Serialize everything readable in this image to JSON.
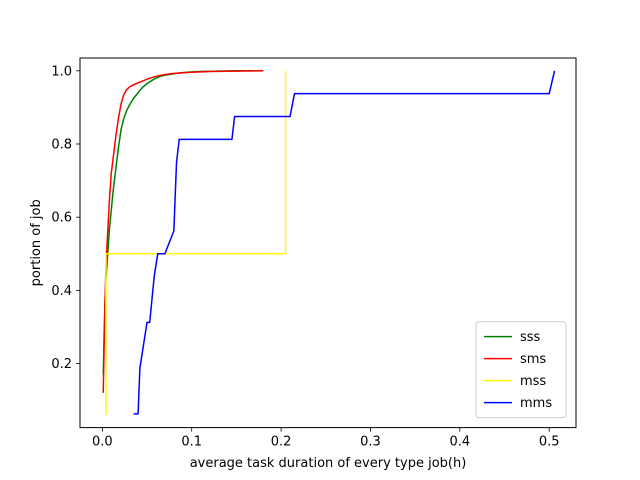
{
  "chart_data": {
    "type": "line",
    "title": "",
    "xlabel": "average task duration of every type job(h)",
    "ylabel": "portion of job",
    "xlim": [
      -0.025,
      0.53
    ],
    "ylim": [
      0.025,
      1.035
    ],
    "x_ticks": [
      0.0,
      0.1,
      0.2,
      0.3,
      0.4,
      0.5
    ],
    "x_tick_labels": [
      "0.0",
      "0.1",
      "0.2",
      "0.3",
      "0.4",
      "0.5"
    ],
    "y_ticks": [
      0.2,
      0.4,
      0.6,
      0.8,
      1.0
    ],
    "y_tick_labels": [
      "0.2",
      "0.4",
      "0.6",
      "0.8",
      "1.0"
    ],
    "grid": false,
    "legend_position": "bottom-right",
    "series": [
      {
        "name": "sss",
        "color": "#008000",
        "x": [
          0.001,
          0.002,
          0.003,
          0.004,
          0.006,
          0.008,
          0.01,
          0.012,
          0.015,
          0.018,
          0.021,
          0.024,
          0.027,
          0.03,
          0.035,
          0.04,
          0.045,
          0.05,
          0.055,
          0.06,
          0.065,
          0.07,
          0.08,
          0.09,
          0.1,
          0.11,
          0.13,
          0.15,
          0.17,
          0.18
        ],
        "y": [
          0.17,
          0.28,
          0.37,
          0.43,
          0.5,
          0.57,
          0.62,
          0.67,
          0.73,
          0.79,
          0.84,
          0.87,
          0.89,
          0.905,
          0.925,
          0.94,
          0.955,
          0.965,
          0.973,
          0.98,
          0.985,
          0.988,
          0.992,
          0.995,
          0.997,
          0.998,
          0.999,
          1.0,
          1.0,
          1.0
        ]
      },
      {
        "name": "sms",
        "color": "#ff0000",
        "x": [
          0.001,
          0.002,
          0.003,
          0.004,
          0.006,
          0.008,
          0.01,
          0.012,
          0.015,
          0.018,
          0.021,
          0.024,
          0.027,
          0.03,
          0.035,
          0.04,
          0.045,
          0.05,
          0.06,
          0.07,
          0.08,
          0.1,
          0.12,
          0.15,
          0.18
        ],
        "y": [
          0.12,
          0.25,
          0.37,
          0.46,
          0.56,
          0.65,
          0.72,
          0.76,
          0.82,
          0.87,
          0.91,
          0.935,
          0.948,
          0.955,
          0.962,
          0.967,
          0.972,
          0.977,
          0.985,
          0.99,
          0.993,
          0.996,
          0.998,
          0.999,
          1.0
        ]
      },
      {
        "name": "mss",
        "color": "#ffff00",
        "x": [
          0.004,
          0.004,
          0.205,
          0.205
        ],
        "y": [
          0.06,
          0.5,
          0.5,
          1.0
        ]
      },
      {
        "name": "mms",
        "color": "#0000ff",
        "x": [
          0.035,
          0.04,
          0.042,
          0.046,
          0.05,
          0.053,
          0.058,
          0.062,
          0.066,
          0.07,
          0.08,
          0.083,
          0.086,
          0.088,
          0.092,
          0.145,
          0.148,
          0.21,
          0.215,
          0.5,
          0.506
        ],
        "y": [
          0.0625,
          0.0625,
          0.1875,
          0.25,
          0.3125,
          0.3125,
          0.4375,
          0.5,
          0.5,
          0.5,
          0.5625,
          0.75,
          0.8125,
          0.8125,
          0.8125,
          0.8125,
          0.875,
          0.875,
          0.9375,
          0.9375,
          1.0
        ]
      }
    ]
  }
}
